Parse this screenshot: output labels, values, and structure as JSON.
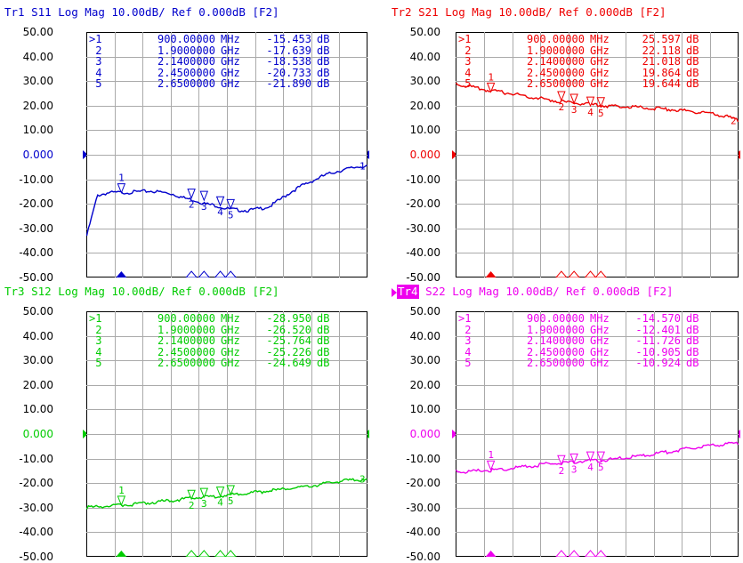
{
  "panels": [
    {
      "id": "tr1",
      "header": "Tr1 S11 Log Mag 10.00dB/ Ref 0.000dB [F2]",
      "trace_label": "Tr1",
      "header_rest": " S11 Log Mag 10.00dB/ Ref 0.000dB [F2]",
      "active": false,
      "color": "#0000cc",
      "y_ticks": [
        "50.00",
        "40.00",
        "30.00",
        "20.00",
        "10.00",
        "0.000",
        "-10.00",
        "-20.00",
        "-30.00",
        "-40.00",
        "-50.00"
      ],
      "ref_tick": "0.000",
      "markers": [
        {
          "no": ">1",
          "freq": "900.00000",
          "unit": "MHz",
          "value": "-15.453",
          "db": "dB"
        },
        {
          "no": " 2",
          "freq": "1.9000000",
          "unit": "GHz",
          "value": "-17.639",
          "db": "dB"
        },
        {
          "no": " 3",
          "freq": "2.1400000",
          "unit": "GHz",
          "value": "-18.538",
          "db": "dB"
        },
        {
          "no": " 4",
          "freq": "2.4500000",
          "unit": "GHz",
          "value": "-20.733",
          "db": "dB"
        },
        {
          "no": " 5",
          "freq": "2.6500000",
          "unit": "GHz",
          "value": "-21.890",
          "db": "dB"
        }
      ],
      "end_marker_label": "1",
      "trace_points": [
        -33,
        -16.5,
        -15.5,
        -15.4,
        -15.3,
        -15,
        -14.8,
        -15.3,
        -16,
        -17.6,
        -18.5,
        -20,
        -20.7,
        -22,
        -22.5,
        -22.7,
        -22,
        -21,
        -18,
        -15,
        -12.5,
        -10.5,
        -8.5,
        -7,
        -6,
        -5,
        -4.5
      ]
    },
    {
      "id": "tr2",
      "header": "Tr2 S21 Log Mag 10.00dB/ Ref 0.000dB [F2]",
      "trace_label": "Tr2",
      "header_rest": " S21 Log Mag 10.00dB/ Ref 0.000dB [F2]",
      "active": false,
      "color": "#ee0000",
      "y_ticks": [
        "50.00",
        "40.00",
        "30.00",
        "20.00",
        "10.00",
        "0.000",
        "-10.00",
        "-20.00",
        "-30.00",
        "-40.00",
        "-50.00"
      ],
      "ref_tick": "0.000",
      "markers": [
        {
          "no": ">1",
          "freq": "900.00000",
          "unit": "MHz",
          "value": "25.597",
          "db": "dB"
        },
        {
          "no": " 2",
          "freq": "1.9000000",
          "unit": "GHz",
          "value": "22.118",
          "db": "dB"
        },
        {
          "no": " 3",
          "freq": "2.1400000",
          "unit": "GHz",
          "value": "21.018",
          "db": "dB"
        },
        {
          "no": " 4",
          "freq": "2.4500000",
          "unit": "GHz",
          "value": "19.864",
          "db": "dB"
        },
        {
          "no": " 5",
          "freq": "2.6500000",
          "unit": "GHz",
          "value": "19.644",
          "db": "dB"
        }
      ],
      "end_marker_label": "2",
      "trace_points": [
        29,
        28,
        27,
        26.2,
        25.6,
        25,
        24.3,
        23.5,
        22.8,
        22.1,
        21.5,
        21,
        20.6,
        20.2,
        19.9,
        19.7,
        19.6,
        19.3,
        19,
        18.7,
        18.4,
        18,
        17.6,
        17,
        16.3,
        15.5,
        14
      ]
    },
    {
      "id": "tr3",
      "header": "Tr3 S12 Log Mag 10.00dB/ Ref 0.000dB [F2]",
      "trace_label": "Tr3",
      "header_rest": " S12 Log Mag 10.00dB/ Ref 0.000dB [F2]",
      "active": false,
      "color": "#00cc00",
      "y_ticks": [
        "50.00",
        "40.00",
        "30.00",
        "20.00",
        "10.00",
        "0.000",
        "-10.00",
        "-20.00",
        "-30.00",
        "-40.00",
        "-50.00"
      ],
      "ref_tick": "0.000",
      "markers": [
        {
          "no": ">1",
          "freq": "900.00000",
          "unit": "MHz",
          "value": "-28.950",
          "db": "dB"
        },
        {
          "no": " 2",
          "freq": "1.9000000",
          "unit": "GHz",
          "value": "-26.520",
          "db": "dB"
        },
        {
          "no": " 3",
          "freq": "2.1400000",
          "unit": "GHz",
          "value": "-25.764",
          "db": "dB"
        },
        {
          "no": " 4",
          "freq": "2.4500000",
          "unit": "GHz",
          "value": "-25.226",
          "db": "dB"
        },
        {
          "no": " 5",
          "freq": "2.6500000",
          "unit": "GHz",
          "value": "-24.649",
          "db": "dB"
        }
      ],
      "end_marker_label": "3",
      "trace_points": [
        -30,
        -29.6,
        -29.3,
        -29,
        -28.7,
        -28.3,
        -27.9,
        -27.4,
        -27,
        -26.5,
        -26,
        -25.7,
        -25.3,
        -24.9,
        -24.5,
        -24,
        -23.6,
        -23.1,
        -22.6,
        -22.1,
        -21.5,
        -21,
        -20.3,
        -19.6,
        -19,
        -18.6,
        -18.3
      ]
    },
    {
      "id": "tr4",
      "header": "Tr4 S22 Log Mag 10.00dB/ Ref 0.000dB [F2]",
      "trace_label": "Tr4",
      "header_rest": " S22 Log Mag 10.00dB/ Ref 0.000dB [F2]",
      "active": true,
      "color": "#ee00ee",
      "y_ticks": [
        "50.00",
        "40.00",
        "30.00",
        "20.00",
        "10.00",
        "0.000",
        "-10.00",
        "-20.00",
        "-30.00",
        "-40.00",
        "-50.00"
      ],
      "ref_tick": "0.000",
      "markers": [
        {
          "no": ">1",
          "freq": "900.00000",
          "unit": "MHz",
          "value": "-14.570",
          "db": "dB"
        },
        {
          "no": " 2",
          "freq": "1.9000000",
          "unit": "GHz",
          "value": "-12.401",
          "db": "dB"
        },
        {
          "no": " 3",
          "freq": "2.1400000",
          "unit": "GHz",
          "value": "-11.726",
          "db": "dB"
        },
        {
          "no": " 4",
          "freq": "2.4500000",
          "unit": "GHz",
          "value": "-10.905",
          "db": "dB"
        },
        {
          "no": " 5",
          "freq": "2.6500000",
          "unit": "GHz",
          "value": "-10.924",
          "db": "dB"
        }
      ],
      "end_marker_label": "",
      "trace_points": [
        -15.3,
        -15.4,
        -15,
        -14.8,
        -14.6,
        -14,
        -13.5,
        -13,
        -12.4,
        -12,
        -11.7,
        -11.3,
        -11,
        -10.9,
        -10.5,
        -10,
        -9.5,
        -9,
        -8.3,
        -7.6,
        -7,
        -6.3,
        -5.5,
        -5,
        -4.4,
        -4,
        -3.6
      ]
    }
  ],
  "marker_stimulus_fractions": [
    0.125,
    0.375,
    0.42,
    0.478,
    0.515
  ],
  "bottom_marker_glyph": "▲"
}
